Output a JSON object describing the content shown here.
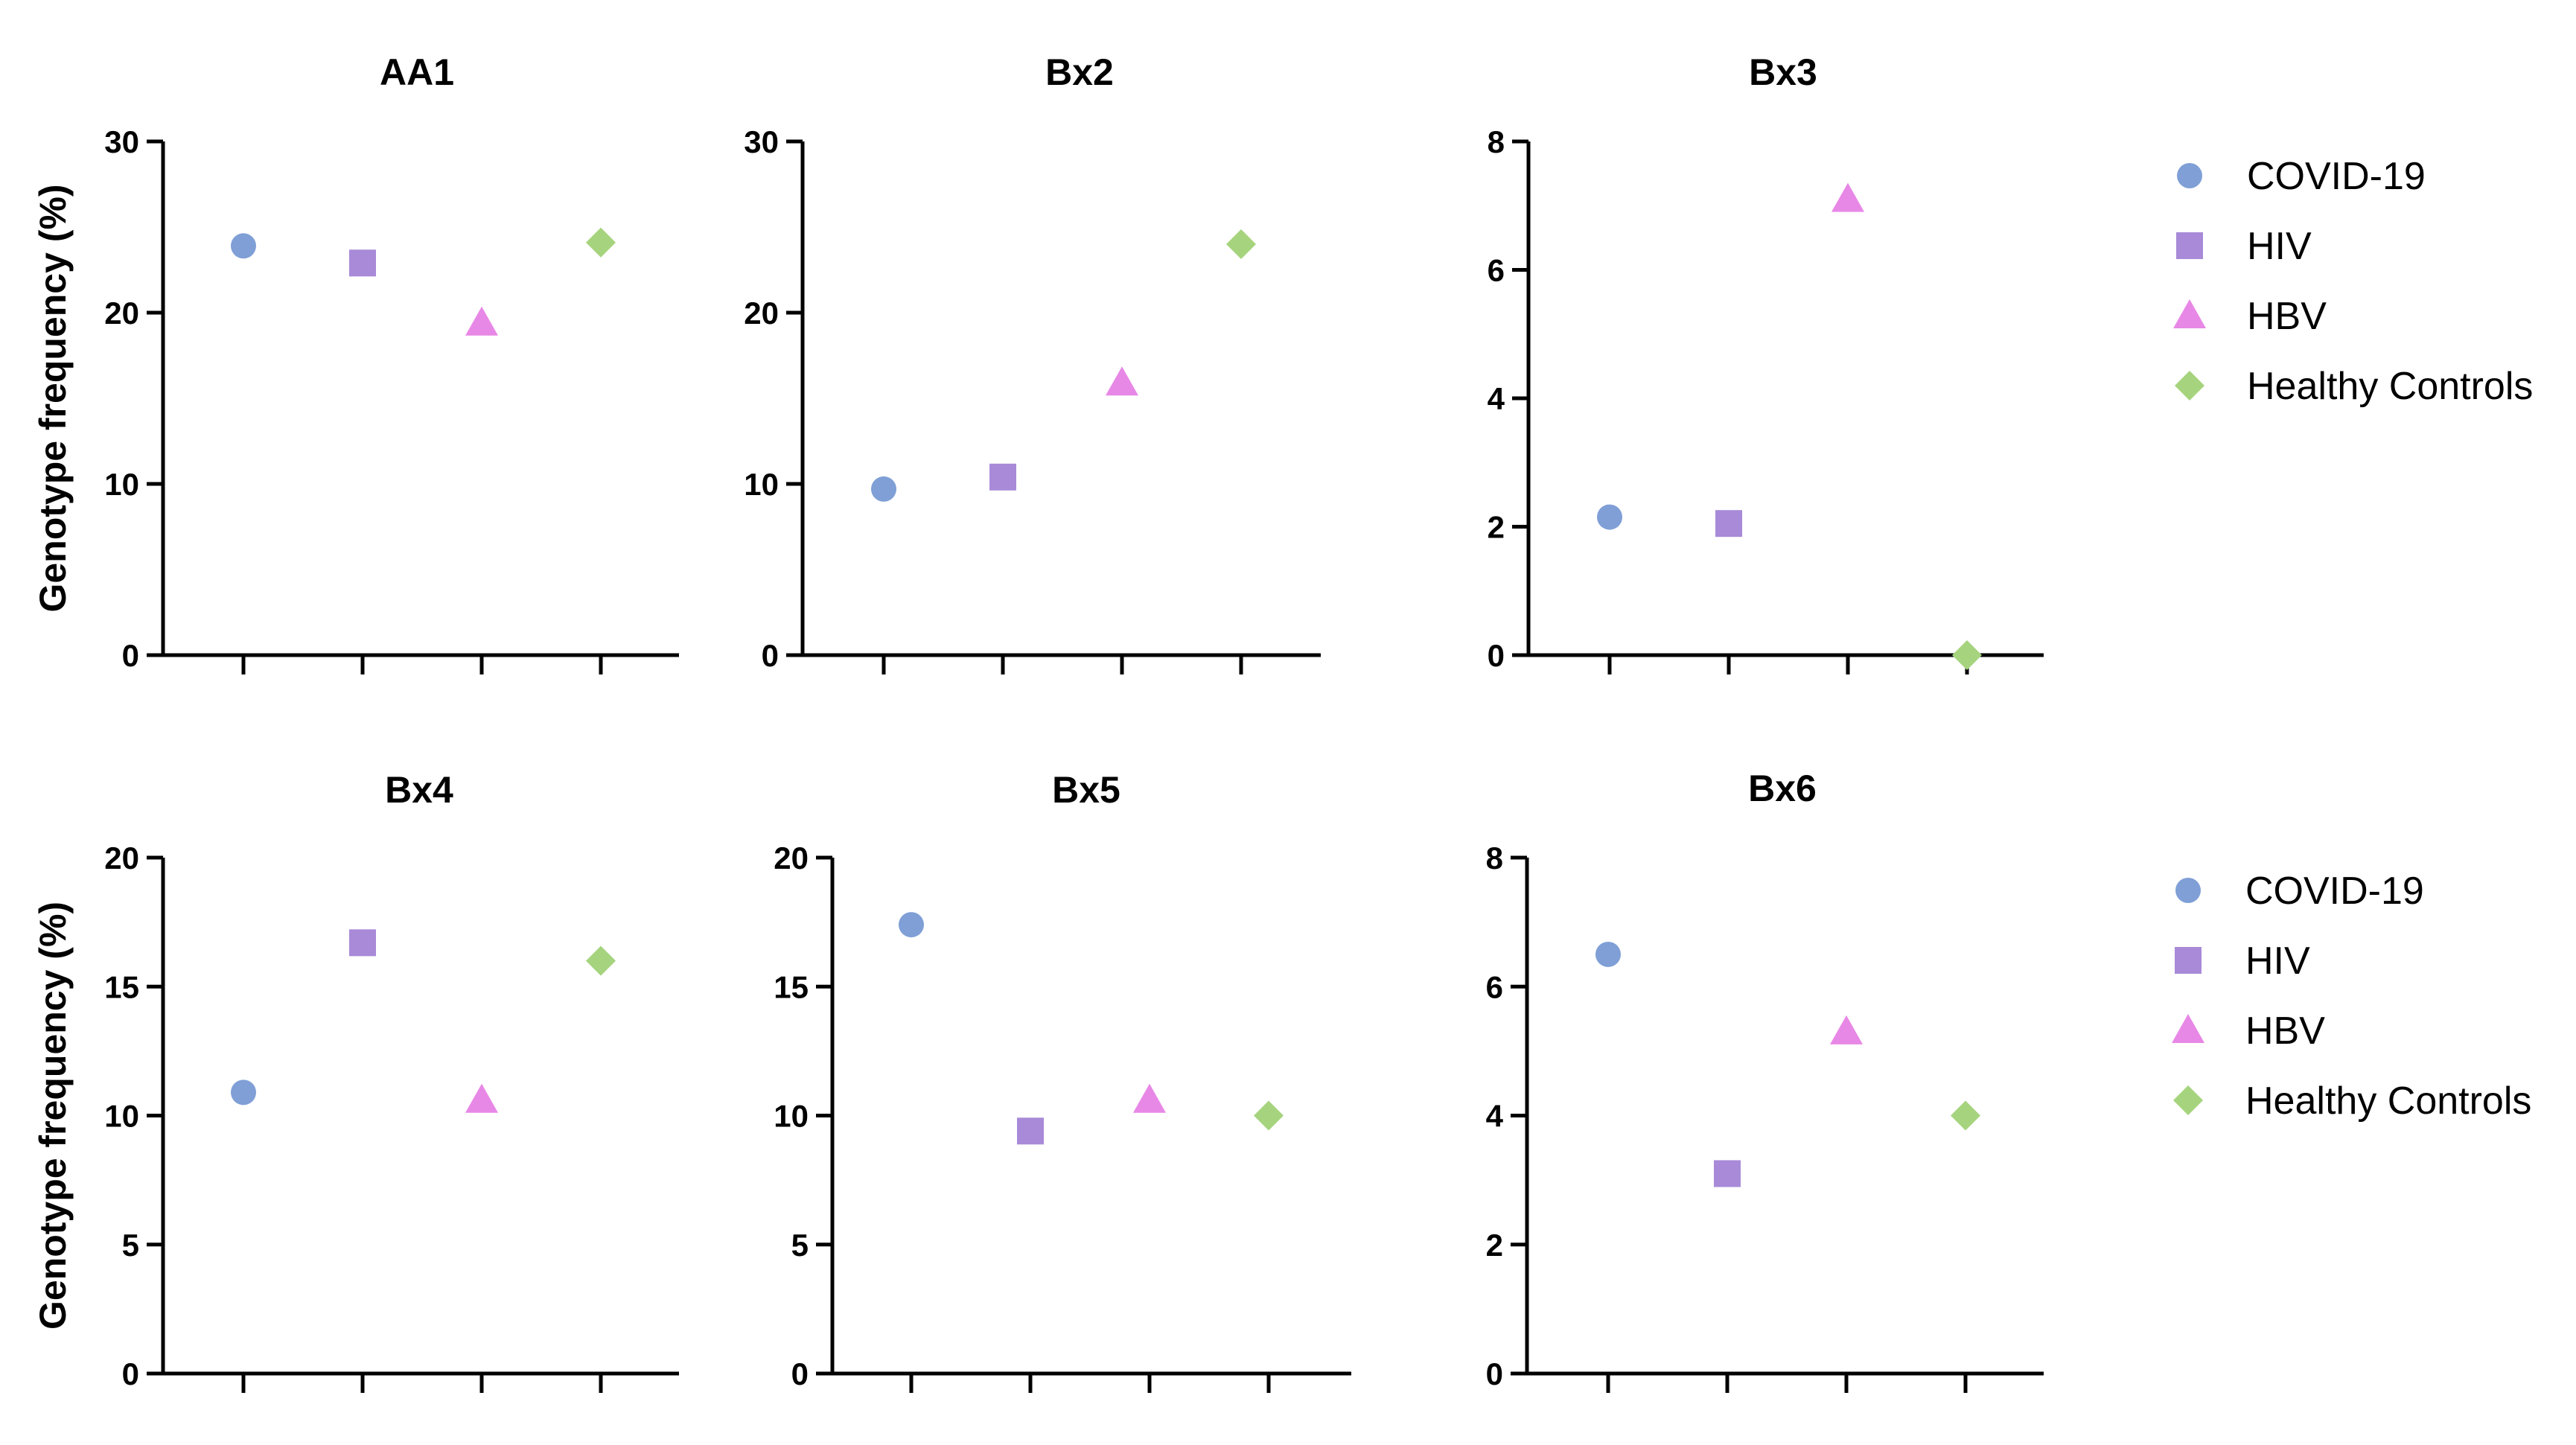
{
  "figure": {
    "series": [
      {
        "name": "COVID-19",
        "color": "#7f9fd6",
        "marker": "circle"
      },
      {
        "name": "HIV",
        "color": "#a88ad8",
        "marker": "square"
      },
      {
        "name": "HBV",
        "color": "#e888e6",
        "marker": "triangle"
      },
      {
        "name": "Healthy Controls",
        "color": "#a6d47e",
        "marker": "diamond"
      }
    ],
    "y_axis_title": "Genotype frequency (%)",
    "legend_position": "right (one legend per row)"
  },
  "chart_data": [
    {
      "type": "scatter",
      "title": "AA1",
      "ylabel": "Genotype frequency (%)",
      "ylim": [
        0,
        30
      ],
      "yticks": [
        0,
        10,
        20,
        30
      ],
      "points": [
        {
          "series": "COVID-19",
          "y": 23.9
        },
        {
          "series": "HIV",
          "y": 22.9
        },
        {
          "series": "HBV",
          "y": 19.4
        },
        {
          "series": "Healthy Controls",
          "y": 24.1
        }
      ]
    },
    {
      "type": "scatter",
      "title": "Bx2",
      "ylabel": "",
      "ylim": [
        0,
        30
      ],
      "yticks": [
        0,
        10,
        20,
        30
      ],
      "points": [
        {
          "series": "COVID-19",
          "y": 9.7
        },
        {
          "series": "HIV",
          "y": 10.4
        },
        {
          "series": "HBV",
          "y": 15.9
        },
        {
          "series": "Healthy Controls",
          "y": 24.0
        }
      ]
    },
    {
      "type": "scatter",
      "title": "Bx3",
      "ylabel": "",
      "ylim": [
        0,
        8
      ],
      "yticks": [
        0,
        2,
        4,
        6,
        8
      ],
      "points": [
        {
          "series": "COVID-19",
          "y": 2.15
        },
        {
          "series": "HIV",
          "y": 2.05
        },
        {
          "series": "HBV",
          "y": 7.1
        },
        {
          "series": "Healthy Controls",
          "y": 0.0
        }
      ]
    },
    {
      "type": "scatter",
      "title": "Bx4",
      "ylabel": "Genotype frequency (%)",
      "ylim": [
        0,
        20
      ],
      "yticks": [
        0,
        5,
        10,
        15,
        20
      ],
      "points": [
        {
          "series": "COVID-19",
          "y": 10.9
        },
        {
          "series": "HIV",
          "y": 16.7
        },
        {
          "series": "HBV",
          "y": 10.6
        },
        {
          "series": "Healthy Controls",
          "y": 16.0
        }
      ]
    },
    {
      "type": "scatter",
      "title": "Bx5",
      "ylabel": "",
      "ylim": [
        0,
        20
      ],
      "yticks": [
        0,
        5,
        10,
        15,
        20
      ],
      "points": [
        {
          "series": "COVID-19",
          "y": 17.4
        },
        {
          "series": "HIV",
          "y": 9.4
        },
        {
          "series": "HBV",
          "y": 10.6
        },
        {
          "series": "Healthy Controls",
          "y": 10.0
        }
      ]
    },
    {
      "type": "scatter",
      "title": "Bx6",
      "ylabel": "",
      "ylim": [
        0,
        8
      ],
      "yticks": [
        0,
        2,
        4,
        6,
        8
      ],
      "points": [
        {
          "series": "COVID-19",
          "y": 6.5
        },
        {
          "series": "HIV",
          "y": 3.1
        },
        {
          "series": "HBV",
          "y": 5.3
        },
        {
          "series": "Healthy Controls",
          "y": 4.0
        }
      ]
    }
  ]
}
